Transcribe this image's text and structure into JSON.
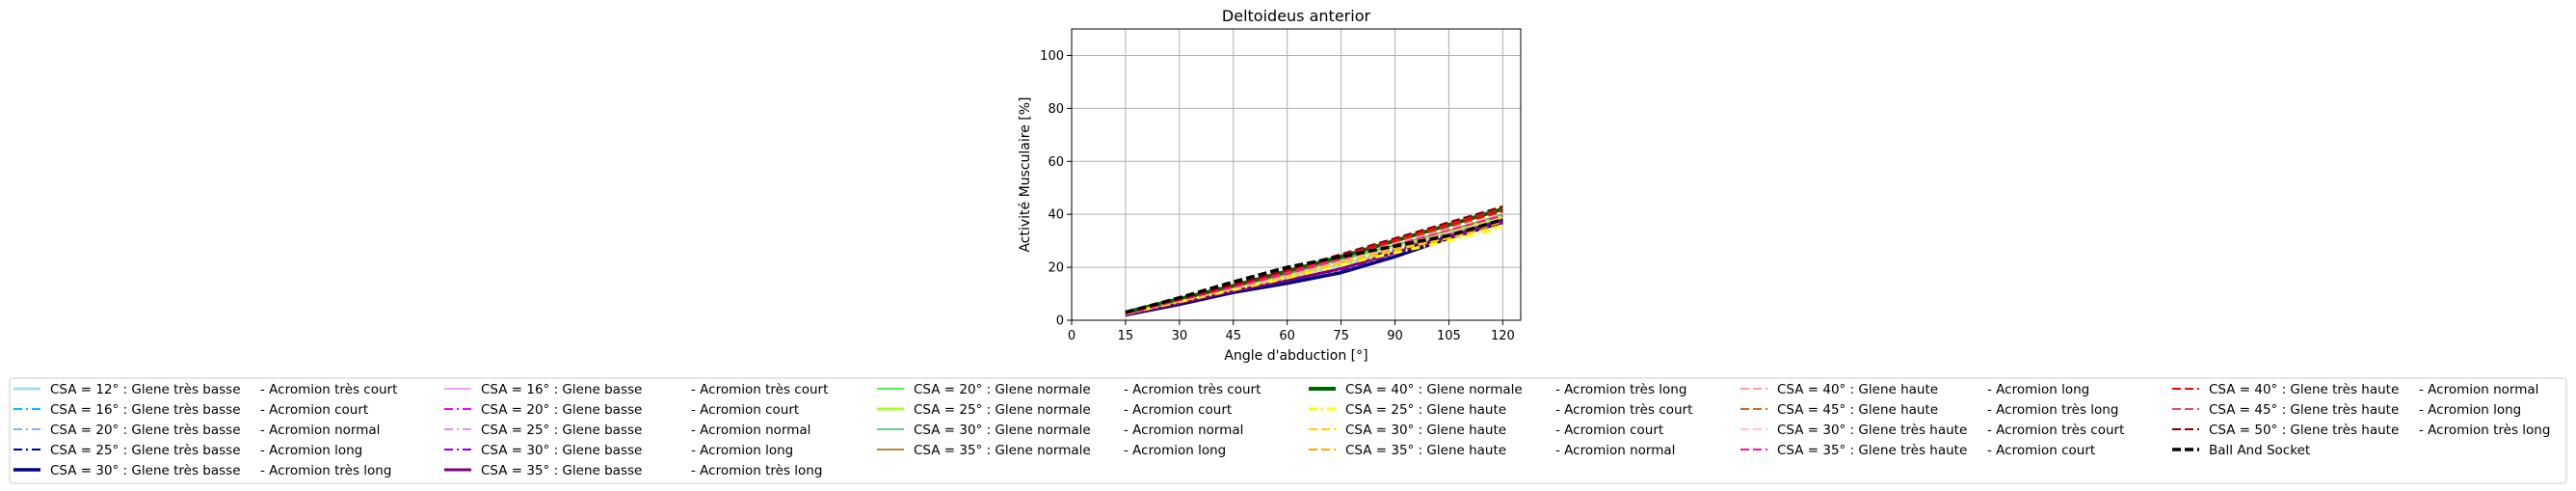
{
  "chart_data": {
    "type": "line",
    "title": "Deltoideus anterior",
    "xlabel": "Angle d'abduction [°]",
    "ylabel": "Activité Musculaire [%]",
    "xlim": [
      0,
      125
    ],
    "ylim": [
      0,
      110
    ],
    "xticks": [
      0,
      15,
      30,
      45,
      60,
      75,
      90,
      105,
      120
    ],
    "yticks": [
      0,
      20,
      40,
      60,
      80,
      100
    ],
    "grid": true,
    "legend_position": "bottom",
    "x": [
      15,
      30,
      45,
      60,
      75,
      90,
      105,
      120
    ],
    "series": [
      {
        "name": "CSA = 12° : Glene très basse",
        "color": "#add8e6",
        "dash": "solid",
        "width": 3,
        "values": [
          2.5,
          7,
          11.5,
          16,
          21,
          26,
          31,
          37
        ]
      },
      {
        "name": "CSA = 16° : Glene très basse",
        "color": "#00bfff",
        "dash": "dashdot",
        "width": 2,
        "values": [
          2.5,
          7.5,
          12,
          17,
          22,
          27,
          32,
          38
        ]
      },
      {
        "name": "CSA = 20° : Glene très basse",
        "color": "#6495ed",
        "dash": "dashdot",
        "width": 1.5,
        "values": [
          2.5,
          7.5,
          12,
          17,
          22,
          27.5,
          33,
          38
        ]
      },
      {
        "name": "CSA = 25° : Glene très basse",
        "color": "#00008b",
        "dash": "dashdot",
        "width": 2,
        "values": [
          2,
          6.5,
          11,
          16,
          21,
          26.5,
          32,
          37
        ]
      },
      {
        "name": "CSA = 30° : Glene très basse",
        "color": "#000080",
        "dash": "solid",
        "width": 3.5,
        "values": [
          2,
          6,
          10.5,
          14,
          18,
          24,
          31,
          37
        ]
      },
      {
        "name": "CSA = 16° : Glene basse",
        "color": "#ee82ee",
        "dash": "solid",
        "width": 1.5,
        "values": [
          2.5,
          7,
          12,
          17,
          22.5,
          28,
          33,
          39
        ]
      },
      {
        "name": "CSA = 20° : Glene basse",
        "color": "#ff00ff",
        "dash": "dashdot",
        "width": 2,
        "values": [
          2.5,
          7,
          12,
          17,
          22,
          27.5,
          33,
          38.5
        ]
      },
      {
        "name": "CSA = 25° : Glene basse",
        "color": "#da70d6",
        "dash": "dashdot",
        "width": 1.5,
        "values": [
          2.5,
          7,
          12,
          16.5,
          22,
          27,
          32.5,
          38
        ]
      },
      {
        "name": "CSA = 30° : Glene basse",
        "color": "#9400d3",
        "dash": "dashdot",
        "width": 2,
        "values": [
          2,
          6.5,
          11,
          15.5,
          19,
          25,
          31,
          37
        ]
      },
      {
        "name": "CSA = 35° : Glene basse",
        "color": "#800080",
        "dash": "solid",
        "width": 3,
        "values": [
          2,
          6.5,
          11,
          15,
          19.5,
          25.5,
          31.5,
          38
        ]
      },
      {
        "name": "CSA = 20° : Glene normale",
        "color": "#00ff00",
        "dash": "solid",
        "width": 1.5,
        "values": [
          2.5,
          7.5,
          12,
          17,
          22.5,
          28,
          33.5,
          39
        ]
      },
      {
        "name": "CSA = 25° : Glene normale",
        "color": "#adff2f",
        "dash": "solid",
        "width": 3,
        "values": [
          2.5,
          7.5,
          12,
          17,
          22.5,
          28,
          33.5,
          39
        ]
      },
      {
        "name": "CSA = 30° : Glene normale",
        "color": "#3cb371",
        "dash": "solid",
        "width": 1.5,
        "values": [
          2.5,
          7.5,
          12.5,
          17.5,
          23,
          28.5,
          34,
          40
        ]
      },
      {
        "name": "CSA = 35° : Glene normale",
        "color": "#8b6914",
        "dash": "solid",
        "width": 1.5,
        "values": [
          3,
          8,
          13,
          18.5,
          24,
          30,
          36,
          42
        ]
      },
      {
        "name": "CSA = 40° : Glene normale",
        "color": "#006400",
        "dash": "solid",
        "width": 4,
        "values": [
          3,
          8,
          13,
          18.5,
          24,
          30,
          36,
          42
        ]
      },
      {
        "name": "CSA = 25° : Glene haute",
        "color": "#ffff00",
        "dash": "dashdot",
        "width": 3,
        "values": [
          2.5,
          7,
          11.5,
          16,
          21,
          25.5,
          30,
          35
        ]
      },
      {
        "name": "CSA = 30° : Glene haute",
        "color": "#ffd700",
        "dash": "dashed",
        "width": 2,
        "values": [
          2.5,
          7,
          12,
          16.5,
          21.5,
          26.5,
          31,
          36
        ]
      },
      {
        "name": "CSA = 35° : Glene haute",
        "color": "#ffa500",
        "dash": "dashed",
        "width": 2,
        "values": [
          2.5,
          7.5,
          12,
          17,
          22,
          27,
          32,
          37
        ]
      },
      {
        "name": "CSA = 40° : Glene haute",
        "color": "#fa8072",
        "dash": "dashed",
        "width": 1.5,
        "values": [
          2.5,
          7.5,
          12.5,
          17.5,
          23,
          28.5,
          34,
          40
        ]
      },
      {
        "name": "CSA = 45° : Glene haute",
        "color": "#d2691e",
        "dash": "dashed",
        "width": 2,
        "values": [
          2.5,
          7.5,
          12.5,
          18,
          23.5,
          29.5,
          35,
          41
        ]
      },
      {
        "name": "CSA = 30° : Glene très haute",
        "color": "#ffb6c1",
        "dash": "dashed",
        "width": 1.5,
        "values": [
          2.5,
          7.5,
          12,
          17,
          22,
          27.5,
          33,
          38
        ]
      },
      {
        "name": "CSA = 35° : Glene très haute",
        "color": "#ff1493",
        "dash": "dashed",
        "width": 2,
        "values": [
          2.5,
          7.5,
          12.5,
          17.5,
          23,
          28.5,
          34,
          39.5
        ]
      },
      {
        "name": "CSA = 40° : Glene très haute",
        "color": "#ff0000",
        "dash": "dashed",
        "width": 2,
        "values": [
          2.5,
          8,
          13,
          18.5,
          24,
          30,
          36,
          41
        ]
      },
      {
        "name": "CSA = 45° : Glene très haute",
        "color": "#dc143c",
        "dash": "dashed",
        "width": 1.5,
        "values": [
          2.5,
          8,
          13,
          18.5,
          24.5,
          30.5,
          36.5,
          42
        ]
      },
      {
        "name": "CSA = 50° : Glene très haute",
        "color": "#8b0000",
        "dash": "dashed",
        "width": 2,
        "values": [
          3,
          8,
          13.5,
          19,
          25,
          31,
          37,
          43
        ]
      },
      {
        "name": "Ball And Socket",
        "color": "#000000",
        "dash": "dashed",
        "width": 3.5,
        "values": [
          3,
          8.5,
          14.5,
          20,
          24,
          28,
          32,
          38
        ]
      }
    ]
  },
  "legend": {
    "columns": [
      {
        "entries": [
          {
            "label": "CSA = 12° : Glene très basse",
            "color": "#add8e6",
            "dash": "solid",
            "width": 3
          },
          {
            "label": "CSA = 16° : Glene très basse",
            "color": "#00bfff",
            "dash": "dashdot",
            "width": 2
          },
          {
            "label": "CSA = 20° : Glene très basse",
            "color": "#6495ed",
            "dash": "dashdot",
            "width": 1.5
          },
          {
            "label": "CSA = 25° : Glene très basse",
            "color": "#00008b",
            "dash": "dashdot",
            "width": 2
          },
          {
            "label": "CSA = 30° : Glene très basse",
            "color": "#000080",
            "dash": "solid",
            "width": 3.5
          }
        ]
      },
      {
        "entries": [
          {
            "label": "-  Acromion très court",
            "color": null
          },
          {
            "label": "-  Acromion court",
            "color": null
          },
          {
            "label": "-  Acromion normal",
            "color": null
          },
          {
            "label": "-  Acromion long",
            "color": null
          },
          {
            "label": "-  Acromion très long",
            "color": null
          }
        ]
      },
      {
        "entries": [
          {
            "label": "CSA = 16° : Glene basse",
            "color": "#ee82ee",
            "dash": "solid",
            "width": 1.5
          },
          {
            "label": "CSA = 20° : Glene basse",
            "color": "#ff00ff",
            "dash": "dashdot",
            "width": 2
          },
          {
            "label": "CSA = 25° : Glene basse",
            "color": "#da70d6",
            "dash": "dashdot",
            "width": 1.5
          },
          {
            "label": "CSA = 30° : Glene basse",
            "color": "#9400d3",
            "dash": "dashdot",
            "width": 2
          },
          {
            "label": "CSA = 35° : Glene basse",
            "color": "#800080",
            "dash": "solid",
            "width": 3
          }
        ]
      },
      {
        "entries": [
          {
            "label": "-  Acromion très court",
            "color": null
          },
          {
            "label": "-  Acromion court",
            "color": null
          },
          {
            "label": "-  Acromion normal",
            "color": null
          },
          {
            "label": "-  Acromion long",
            "color": null
          },
          {
            "label": "-  Acromion très long",
            "color": null
          }
        ]
      },
      {
        "entries": [
          {
            "label": "CSA = 20° : Glene normale",
            "color": "#00ff00",
            "dash": "solid",
            "width": 1.5
          },
          {
            "label": "CSA = 25° : Glene normale",
            "color": "#adff2f",
            "dash": "solid",
            "width": 3
          },
          {
            "label": "CSA = 30° : Glene normale",
            "color": "#3cb371",
            "dash": "solid",
            "width": 1.5
          },
          {
            "label": "CSA = 35° : Glene normale",
            "color": "#8b6914",
            "dash": "solid",
            "width": 1.5
          }
        ]
      },
      {
        "entries": [
          {
            "label": "-  Acromion très court",
            "color": null
          },
          {
            "label": "-  Acromion court",
            "color": null
          },
          {
            "label": "-  Acromion normal",
            "color": null
          },
          {
            "label": "-  Acromion long",
            "color": null
          }
        ]
      },
      {
        "entries": [
          {
            "label": "CSA = 40° : Glene normale",
            "color": "#006400",
            "dash": "solid",
            "width": 4
          },
          {
            "label": "CSA = 25° : Glene haute",
            "color": "#ffff00",
            "dash": "dashdot",
            "width": 3
          },
          {
            "label": "CSA = 30° : Glene haute",
            "color": "#ffd700",
            "dash": "dashed",
            "width": 2
          },
          {
            "label": "CSA = 35° : Glene haute",
            "color": "#ffa500",
            "dash": "dashed",
            "width": 2
          }
        ]
      },
      {
        "entries": [
          {
            "label": "-  Acromion très long",
            "color": null
          },
          {
            "label": "-  Acromion très court",
            "color": null
          },
          {
            "label": "-  Acromion court",
            "color": null
          },
          {
            "label": "-  Acromion normal",
            "color": null
          }
        ]
      },
      {
        "entries": [
          {
            "label": "CSA = 40° : Glene haute",
            "color": "#fa8072",
            "dash": "dashed",
            "width": 1.5
          },
          {
            "label": "CSA = 45° : Glene haute",
            "color": "#d2691e",
            "dash": "dashed",
            "width": 2
          },
          {
            "label": "CSA = 30° : Glene très haute",
            "color": "#ffb6c1",
            "dash": "dashed",
            "width": 1.5
          },
          {
            "label": "CSA = 35° : Glene très haute",
            "color": "#ff1493",
            "dash": "dashed",
            "width": 2
          }
        ]
      },
      {
        "entries": [
          {
            "label": "-  Acromion long",
            "color": null
          },
          {
            "label": "-  Acromion très long",
            "color": null
          },
          {
            "label": "-  Acromion très court",
            "color": null
          },
          {
            "label": "-  Acromion court",
            "color": null
          }
        ]
      },
      {
        "entries": [
          {
            "label": "CSA = 40° : Glene très haute",
            "color": "#ff0000",
            "dash": "dashed",
            "width": 2
          },
          {
            "label": "CSA = 45° : Glene très haute",
            "color": "#dc143c",
            "dash": "dashed",
            "width": 1.5
          },
          {
            "label": "CSA = 50° : Glene très haute",
            "color": "#8b0000",
            "dash": "dashed",
            "width": 2
          },
          {
            "label": "Ball And Socket",
            "color": "#000000",
            "dash": "dashed",
            "width": 3.5
          }
        ]
      },
      {
        "entries": [
          {
            "label": "-  Acromion normal",
            "color": null
          },
          {
            "label": "-  Acromion long",
            "color": null
          },
          {
            "label": "-  Acromion très long",
            "color": null
          }
        ]
      }
    ]
  }
}
